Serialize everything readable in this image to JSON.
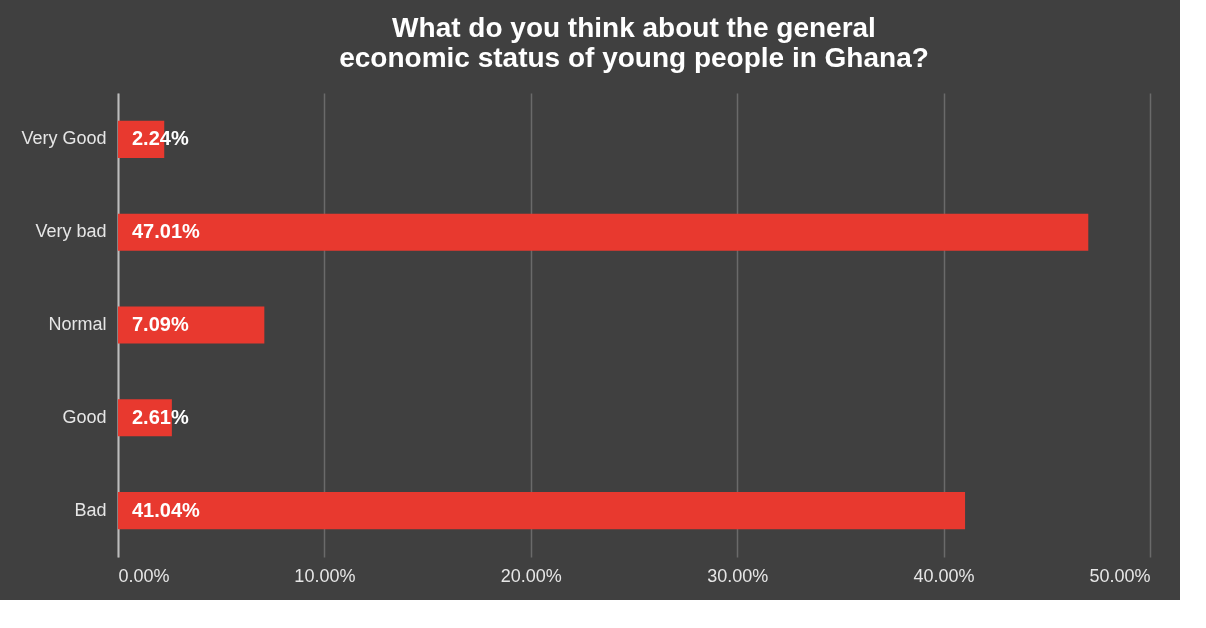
{
  "chart_data": {
    "type": "bar",
    "orientation": "horizontal",
    "title": "What do you think about the general economic status of young people in Ghana?",
    "categories": [
      "Very Good",
      "Very bad",
      "Normal",
      "Good",
      "Bad"
    ],
    "values": [
      2.24,
      47.01,
      7.09,
      2.61,
      41.04
    ],
    "value_labels": [
      "2.24%",
      "47.01%",
      "7.09%",
      "2.61%",
      "41.04%"
    ],
    "color": "#e8392f",
    "xlim": [
      0,
      50
    ],
    "xticks": [
      {
        "value": 0,
        "label": "0.00%"
      },
      {
        "value": 10,
        "label": "10.00%"
      },
      {
        "value": 20,
        "label": "20.00%"
      },
      {
        "value": 30,
        "label": "30.00%"
      },
      {
        "value": 40,
        "label": "40.00%"
      },
      {
        "value": 50,
        "label": "50.00%"
      }
    ],
    "grid": "x"
  }
}
